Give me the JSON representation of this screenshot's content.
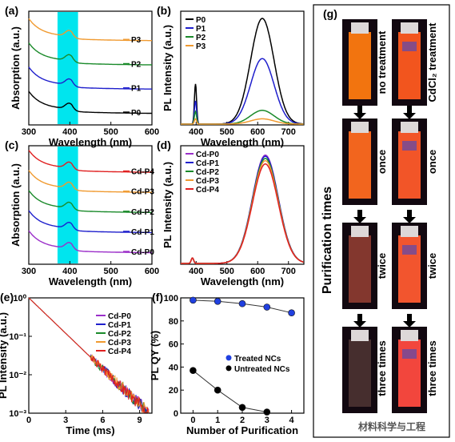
{
  "colors": {
    "P0": "#000000",
    "P1": "#1f1fcc",
    "P2": "#1a8a2a",
    "P3": "#f09a30",
    "P4": "#e02020",
    "Cd0": "#9b2fc9",
    "highlight": "#00e5ee",
    "blueMark": "#2040e0"
  },
  "chart_data": [
    {
      "id": "a",
      "type": "line",
      "panel_label": "(a)",
      "xlabel": "Wavelength (nm)",
      "ylabel": "Absorption (a.u.)",
      "xlim": [
        300,
        600
      ],
      "xticks": [
        300,
        400,
        500,
        600
      ],
      "highlight_range": [
        370,
        420
      ],
      "series": [
        {
          "name": "P0",
          "label": "P0",
          "key": "P0"
        },
        {
          "name": "P1",
          "label": "P1",
          "key": "P1"
        },
        {
          "name": "P2",
          "label": "P2",
          "key": "P2"
        },
        {
          "name": "P3",
          "label": "P3",
          "key": "P3"
        }
      ]
    },
    {
      "id": "b",
      "type": "line",
      "panel_label": "(b)",
      "xlabel": "Wavelength (nm)",
      "ylabel": "PL Intensity (a.u.)",
      "xlim": [
        350,
        750
      ],
      "xticks": [
        400,
        500,
        600,
        700
      ],
      "legend_position": "top-left",
      "series": [
        {
          "name": "P0",
          "key": "P0",
          "peak_main": 1.0,
          "peak_400": 0.38
        },
        {
          "name": "P1",
          "key": "P1",
          "peak_main": 0.62,
          "peak_400": 0.22
        },
        {
          "name": "P2",
          "key": "P2",
          "peak_main": 0.13,
          "peak_400": 0.12
        },
        {
          "name": "P3",
          "key": "P3",
          "peak_main": 0.05,
          "peak_400": 0.05
        }
      ]
    },
    {
      "id": "c",
      "type": "line",
      "panel_label": "(c)",
      "xlabel": "Wavelength (nm)",
      "ylabel": "Absorption (a.u.)",
      "xlim": [
        300,
        600
      ],
      "xticks": [
        300,
        400,
        500,
        600
      ],
      "highlight_range": [
        370,
        420
      ],
      "series": [
        {
          "name": "Cd-P0",
          "label": "Cd-P0",
          "key": "Cd0"
        },
        {
          "name": "Cd-P1",
          "label": "Cd-P1",
          "key": "P1"
        },
        {
          "name": "Cd-P2",
          "label": "Cd-P2",
          "key": "P2"
        },
        {
          "name": "Cd-P3",
          "label": "Cd-P3",
          "key": "P3"
        },
        {
          "name": "Cd-P4",
          "label": "Cd-P4",
          "key": "P4"
        }
      ]
    },
    {
      "id": "d",
      "type": "line",
      "panel_label": "(d)",
      "xlabel": "Wavelength (nm)",
      "ylabel": "PL Intensity (a.u.)",
      "xlim": [
        350,
        750
      ],
      "xticks": [
        400,
        500,
        600,
        700
      ],
      "legend_position": "top-left",
      "series": [
        {
          "name": "Cd-P0",
          "key": "Cd0",
          "peak": 0.98
        },
        {
          "name": "Cd-P1",
          "key": "P1",
          "peak": 0.97
        },
        {
          "name": "Cd-P2",
          "key": "P2",
          "peak": 0.95
        },
        {
          "name": "Cd-P3",
          "key": "P3",
          "peak": 0.93
        },
        {
          "name": "Cd-P4",
          "key": "P4",
          "peak": 0.9
        }
      ]
    },
    {
      "id": "e",
      "type": "line",
      "panel_label": "(e)",
      "xlabel": "Time (ms)",
      "ylabel": "PL Intensity (a.u.)",
      "xlim": [
        0,
        10
      ],
      "xticks": [
        0,
        3,
        6,
        9
      ],
      "yscale": "log",
      "ylim": [
        0.001,
        1
      ],
      "yticks": [
        "10⁰",
        "10⁻¹",
        "10⁻²",
        "10⁻³"
      ],
      "legend_position": "top-right",
      "series": [
        {
          "name": "Cd-P0",
          "key": "Cd0"
        },
        {
          "name": "Cd-P1",
          "key": "P1"
        },
        {
          "name": "Cd-P2",
          "key": "P2"
        },
        {
          "name": "Cd-P3",
          "key": "P3"
        },
        {
          "name": "Cd-P4",
          "key": "P4"
        }
      ]
    },
    {
      "id": "f",
      "type": "scatter",
      "panel_label": "(f)",
      "xlabel": "Number of Purification",
      "ylabel": "PL QY (%)",
      "xlim": [
        -0.5,
        4.5
      ],
      "xticks": [
        0,
        1,
        2,
        3,
        4
      ],
      "ylim": [
        0,
        100
      ],
      "yticks": [
        0,
        20,
        40,
        60,
        80,
        100
      ],
      "legend_position": "center-right",
      "series": [
        {
          "name": "Treated NCs",
          "key": "blueMark",
          "x": [
            0,
            1,
            2,
            3,
            4
          ],
          "y": [
            98,
            97,
            95,
            92,
            87
          ]
        },
        {
          "name": "Untreated NCs",
          "key": "P0",
          "x": [
            0,
            1,
            2,
            3
          ],
          "y": [
            37,
            20,
            5,
            1
          ]
        }
      ]
    }
  ],
  "panel_g": {
    "label": "(g)",
    "title": "Purification times",
    "left_col_top": "no treatment",
    "right_col_top": "CdCl₂ treatment",
    "rows": [
      "once",
      "twice",
      "three times"
    ]
  },
  "watermark": "材料科学与工程"
}
